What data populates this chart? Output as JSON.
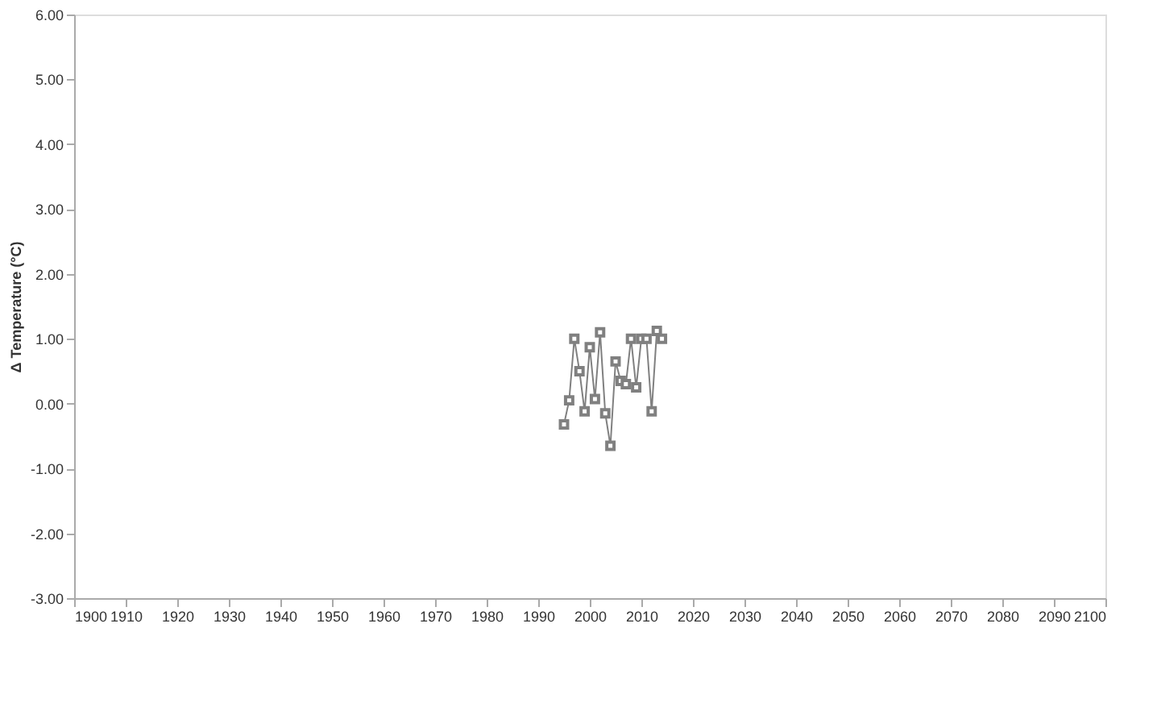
{
  "chart_data": {
    "type": "line",
    "ylabel": "Δ Temperature (°C)",
    "x": [
      1995,
      1996,
      1997,
      1998,
      1999,
      2000,
      2001,
      2002,
      2003,
      2004,
      2005,
      2006,
      2007,
      2008,
      2009,
      2010,
      2011,
      2012,
      2013,
      2014
    ],
    "series": [
      {
        "color": "#808080",
        "values": [
          -0.32,
          0.05,
          1.0,
          0.5,
          -0.12,
          0.87,
          0.07,
          1.1,
          -0.15,
          -0.65,
          0.65,
          0.35,
          0.3,
          1.0,
          0.25,
          1.0,
          1.0,
          -0.12,
          1.12,
          1.0
        ]
      }
    ],
    "xlim": [
      1900,
      2100
    ],
    "xticks": [
      1900,
      1910,
      1920,
      1930,
      1940,
      1950,
      1960,
      1970,
      1980,
      1990,
      2000,
      2010,
      2020,
      2030,
      2040,
      2050,
      2060,
      2070,
      2080,
      2090,
      2100
    ],
    "ylim": [
      -3,
      6
    ],
    "yticks": [
      {
        "value": -3,
        "label": "-3.00"
      },
      {
        "value": -2,
        "label": "-2.00"
      },
      {
        "value": -1,
        "label": "-1.00"
      },
      {
        "value": 0,
        "label": "0.00"
      },
      {
        "value": 1,
        "label": "1.00"
      },
      {
        "value": 2,
        "label": "2.00"
      },
      {
        "value": 3,
        "label": "3.00"
      },
      {
        "value": 4,
        "label": "4.00"
      },
      {
        "value": 5,
        "label": "5.00"
      },
      {
        "value": 6,
        "label": "6.00"
      }
    ],
    "marker": "square",
    "grid": false
  }
}
